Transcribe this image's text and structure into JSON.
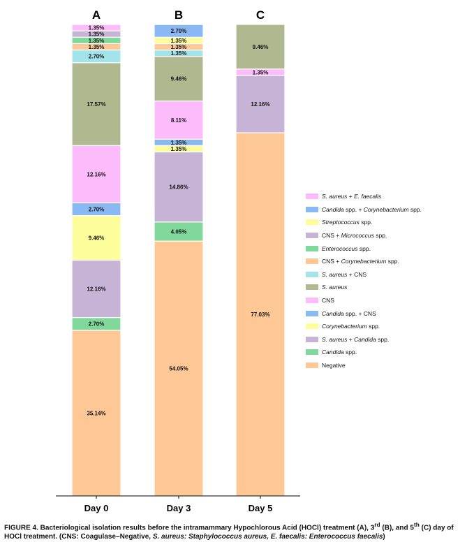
{
  "chart_data": {
    "type": "bar",
    "stacked": true,
    "orientation": "vertical",
    "categories": [
      "Day 0",
      "Day 3",
      "Day 5"
    ],
    "panel_labels": [
      "A",
      "B",
      "C"
    ],
    "ylim": [
      0,
      100
    ],
    "grid": false,
    "legend_placement": "right",
    "series": [
      {
        "name": "Negative",
        "color": "#fdc896",
        "values": [
          35.14,
          54.05,
          77.03
        ]
      },
      {
        "name": "Candida spp.",
        "italic": "Candida",
        "color": "#80d99b",
        "values": [
          2.7,
          4.05,
          0
        ]
      },
      {
        "name": "S. aureus + Candida spp.",
        "color": "#c7b3d6",
        "values": [
          12.16,
          14.86,
          12.16
        ]
      },
      {
        "name": "Corynebacterium spp.",
        "color": "#fdfd9b",
        "values": [
          9.46,
          1.35,
          0
        ]
      },
      {
        "name": "Candida spp. + CNS",
        "color": "#8ab8f3",
        "values": [
          2.7,
          1.35,
          0
        ]
      },
      {
        "name": "CNS",
        "color": "#fcbcfc",
        "values": [
          12.16,
          8.11,
          1.35
        ]
      },
      {
        "name": "S. aureus",
        "color": "#b0b890",
        "values": [
          17.57,
          9.46,
          9.46
        ]
      },
      {
        "name": "S. aureus + CNS",
        "color": "#a2e4ea",
        "values": [
          2.7,
          1.35,
          0
        ]
      },
      {
        "name": "CNS + Corynebacterium spp.",
        "color": "#fdc896",
        "values": [
          1.35,
          1.35,
          0
        ]
      },
      {
        "name": "Enterococcus spp.",
        "color": "#80d99b",
        "values": [
          1.35,
          0,
          0
        ]
      },
      {
        "name": "CNS + Micrococcus spp.",
        "color": "#c7b3d6",
        "values": [
          1.35,
          0,
          0
        ]
      },
      {
        "name": "Streptococcus spp.",
        "color": "#fdfd9b",
        "values": [
          0,
          1.35,
          0
        ]
      },
      {
        "name": "Candida spp. + Corynebacterium spp.",
        "color": "#8ab8f3",
        "values": [
          0,
          2.7,
          0
        ]
      },
      {
        "name": "S. aureus + E. faecalis",
        "color": "#fcbcfc",
        "values": [
          1.35,
          0,
          0
        ]
      }
    ]
  },
  "legend_html": [
    "<i>S. aureus</i> + <i>E. faecalis</i>",
    "<i>Candida</i> spp. + <i>Corynebacterium</i> spp.",
    "<i>Streptococcus</i> spp.",
    "CNS + <i>Micrococcus</i> spp.",
    "<i>Enterococcus</i> spp.",
    "CNS + <i>Corynebacterium</i> spp.",
    "<i>S. aureus</i> + CNS",
    "<i>S. aureus</i>",
    "CNS",
    "<i>Candida</i> spp. + CNS",
    "<i>Corynebacterium</i> spp.",
    "<i>S. aureus</i> + <i>Candida</i> spp.",
    "<i>Candida</i> spp.",
    "Negative"
  ],
  "caption": {
    "p1": "FIGURE 4. Bacteriological isolation results before the intramammary Hypochlorous Acid (HOCl) treatment (A), 3",
    "sup1": "rd",
    "p2": " (B), and 5",
    "sup2": "th",
    "p3": " (C) day of HOCl treatment. (CNS: Coagulase–Negative, ",
    "i1": "S. aureus: Staphylococcus aureus, E. faecalis: Enterococcus faecalis",
    "p4": ")"
  }
}
